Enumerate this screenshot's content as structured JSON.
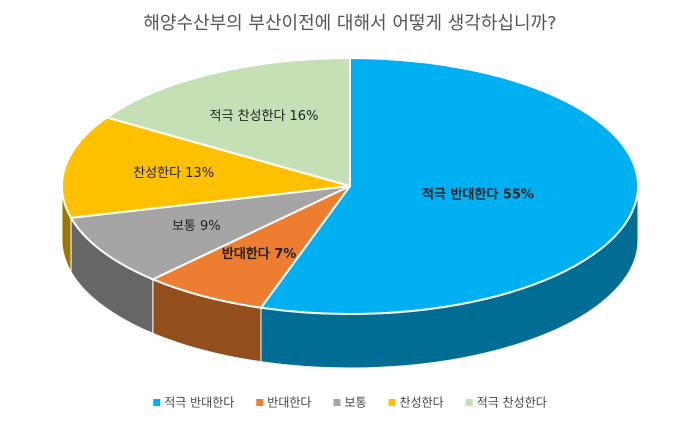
{
  "chart_data": {
    "type": "pie",
    "title": "해양수산부의 부산이전에 대해서 어떻게 생각하십니까?",
    "categories": [
      "적극 반대한다",
      "반대한다",
      "보통",
      "찬성한다",
      "적극 찬성한다"
    ],
    "values": [
      55,
      7,
      9,
      13,
      16
    ],
    "value_labels": [
      "적극 반대한다 55%",
      "반대한다 7%",
      "보통 9%",
      "찬성한다 13%",
      "적극 찬성한다 16%"
    ],
    "colors": [
      "#00b0f0",
      "#ed7d31",
      "#a5a5a5",
      "#ffc000",
      "#c5e0b4"
    ],
    "legend": "bottom"
  }
}
